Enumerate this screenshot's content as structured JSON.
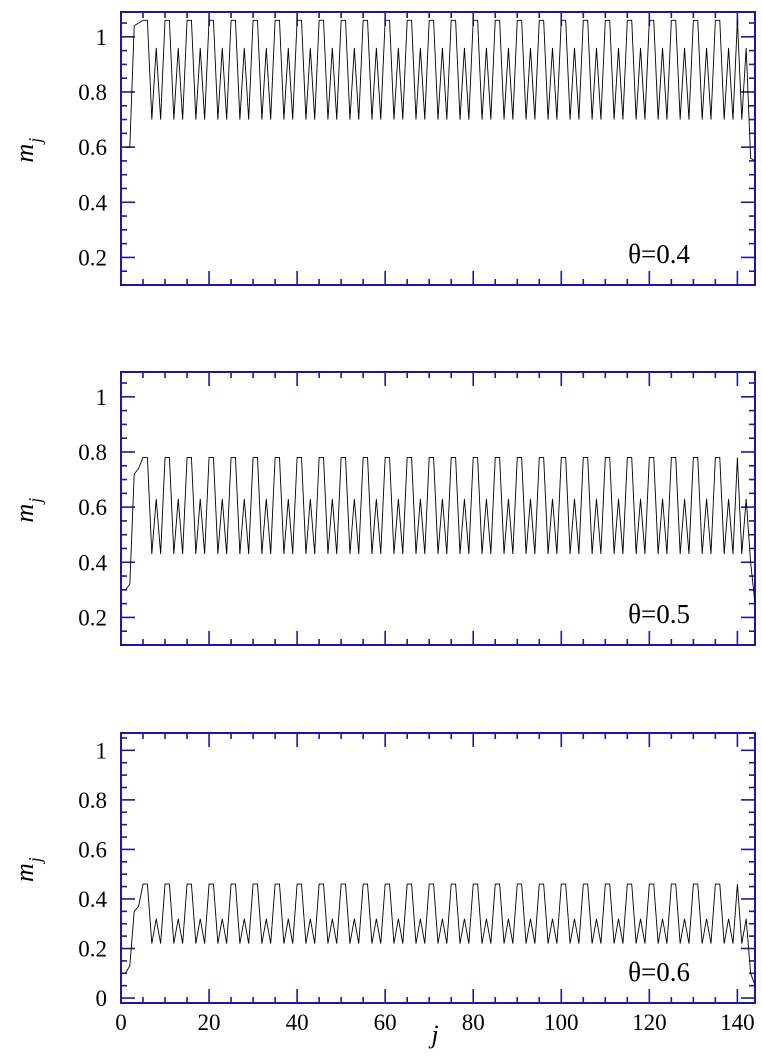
{
  "colors": {
    "axis": "#1a1aa0",
    "line": "#000000",
    "background": "#ffffff"
  },
  "chart_data": [
    {
      "type": "line",
      "annotation": "θ=0.4",
      "xlabel": "",
      "ylabel": "m_j",
      "xlim": [
        0,
        144
      ],
      "ylim": [
        0.1,
        1.09
      ],
      "yticks": [
        0.2,
        0.4,
        0.6,
        0.8,
        1
      ],
      "ytick_labels": [
        "0.2",
        "0.4",
        "0.6",
        "0.8",
        "1"
      ],
      "xticks": [
        0,
        20,
        40,
        60,
        80,
        100,
        120,
        140
      ],
      "xtick_labels": [],
      "period_pattern": [
        1.06,
        1.06,
        0.7,
        0.96,
        0.7
      ],
      "first_values": [
        0.6,
        0.6,
        1.04,
        1.05
      ],
      "last_values": [
        0.7,
        0.96,
        0.56,
        0.55
      ],
      "n_points": 144,
      "grid": false
    },
    {
      "type": "line",
      "annotation": "θ=0.5",
      "xlabel": "",
      "ylabel": "m_j",
      "xlim": [
        0,
        144
      ],
      "ylim": [
        0.1,
        1.09
      ],
      "yticks": [
        0.2,
        0.4,
        0.6,
        0.8,
        1
      ],
      "ytick_labels": [
        "0.2",
        "0.4",
        "0.6",
        "0.8",
        "1"
      ],
      "xticks": [
        0,
        20,
        40,
        60,
        80,
        100,
        120,
        140
      ],
      "xtick_labels": [],
      "period_pattern": [
        0.78,
        0.78,
        0.43,
        0.63,
        0.43
      ],
      "first_values": [
        0.3,
        0.32,
        0.72,
        0.74
      ],
      "last_values": [
        0.43,
        0.63,
        0.4,
        0.25
      ],
      "n_points": 144,
      "grid": false
    },
    {
      "type": "line",
      "annotation": "θ=0.6",
      "xlabel": "j",
      "ylabel": "m_j",
      "xlim": [
        0,
        144
      ],
      "ylim": [
        -0.02,
        1.07
      ],
      "yticks": [
        0,
        0.2,
        0.4,
        0.6,
        0.8,
        1
      ],
      "ytick_labels": [
        "0",
        "0.2",
        "0.4",
        "0.6",
        "0.8",
        "1"
      ],
      "xticks": [
        0,
        20,
        40,
        60,
        80,
        100,
        120,
        140
      ],
      "xtick_labels": [
        "0",
        "20",
        "40",
        "60",
        "80",
        "100",
        "120",
        "140"
      ],
      "period_pattern": [
        0.46,
        0.46,
        0.22,
        0.32,
        0.22
      ],
      "first_values": [
        0.1,
        0.13,
        0.35,
        0.37
      ],
      "last_values": [
        0.22,
        0.32,
        0.1,
        0.05
      ],
      "n_points": 144,
      "grid": false
    }
  ]
}
